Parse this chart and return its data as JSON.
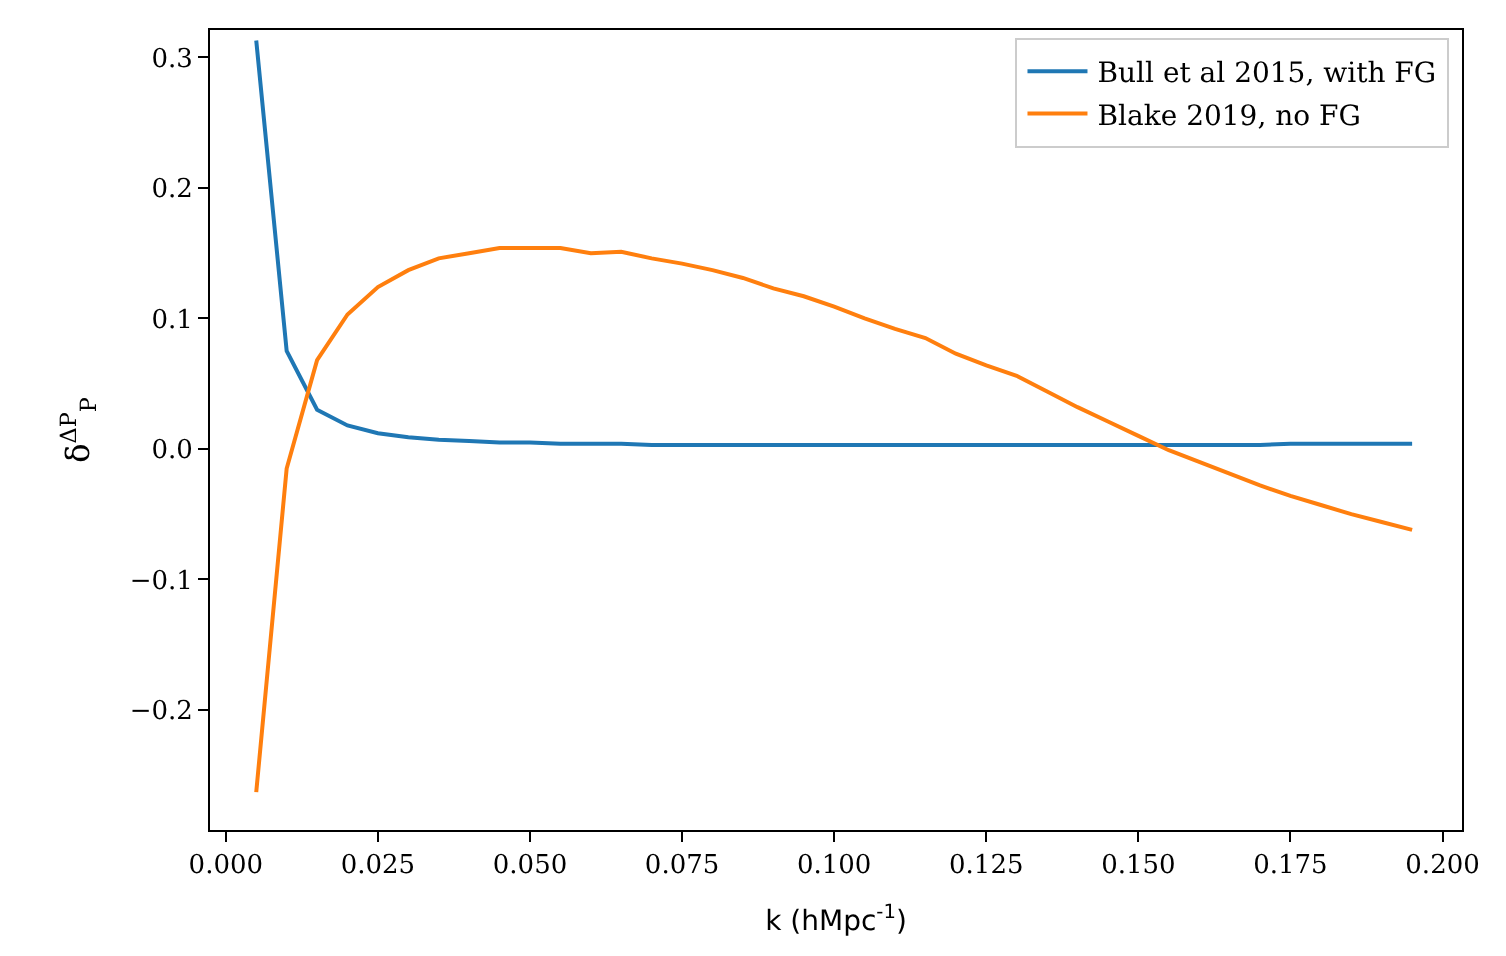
{
  "chart_data": {
    "type": "line",
    "xlabel": "k (hMpc$^{-1}$)",
    "ylabel": "δ$^{ΔP}$$_{P}$",
    "x": [
      0.005,
      0.01,
      0.015,
      0.02,
      0.025,
      0.03,
      0.035,
      0.04,
      0.045,
      0.05,
      0.055,
      0.06,
      0.065,
      0.07,
      0.075,
      0.08,
      0.085,
      0.09,
      0.095,
      0.1,
      0.105,
      0.11,
      0.115,
      0.12,
      0.125,
      0.13,
      0.135,
      0.14,
      0.145,
      0.15,
      0.155,
      0.16,
      0.165,
      0.17,
      0.175,
      0.18,
      0.185,
      0.19,
      0.195
    ],
    "series": [
      {
        "name": "Bull et al 2015, with FG",
        "color": "#1f77b4",
        "values": [
          0.313,
          0.075,
          0.03,
          0.018,
          0.012,
          0.009,
          0.007,
          0.006,
          0.005,
          0.005,
          0.004,
          0.004,
          0.004,
          0.003,
          0.003,
          0.003,
          0.003,
          0.003,
          0.003,
          0.003,
          0.003,
          0.003,
          0.003,
          0.003,
          0.003,
          0.003,
          0.003,
          0.003,
          0.003,
          0.003,
          0.003,
          0.003,
          0.003,
          0.003,
          0.004,
          0.004,
          0.004,
          0.004,
          0.004
        ]
      },
      {
        "name": "Blake 2019, no FG",
        "color": "#ff7f0e",
        "values": [
          -0.263,
          -0.015,
          0.068,
          0.103,
          0.124,
          0.137,
          0.146,
          0.15,
          0.154,
          0.154,
          0.154,
          0.15,
          0.151,
          0.146,
          0.142,
          0.137,
          0.131,
          0.123,
          0.117,
          0.109,
          0.1,
          0.092,
          0.085,
          0.073,
          0.064,
          0.056,
          0.044,
          0.032,
          0.021,
          0.01,
          -0.001,
          -0.01,
          -0.019,
          -0.028,
          -0.036,
          -0.043,
          -0.05,
          -0.056,
          -0.062
        ]
      }
    ],
    "xlim": [
      -0.0026,
      0.2032
    ],
    "ylim": [
      -0.292,
      0.321
    ],
    "xticks": [
      {
        "value": 0,
        "label": "0.000"
      },
      {
        "value": 0.025,
        "label": "0.025"
      },
      {
        "value": 0.05,
        "label": "0.050"
      },
      {
        "value": 0.075,
        "label": "0.075"
      },
      {
        "value": 0.1,
        "label": "0.100"
      },
      {
        "value": 0.125,
        "label": "0.125"
      },
      {
        "value": 0.15,
        "label": "0.150"
      },
      {
        "value": 0.175,
        "label": "0.175"
      },
      {
        "value": 0.2,
        "label": "0.200"
      }
    ],
    "yticks": [
      {
        "value": -0.2,
        "label": "−0.2"
      },
      {
        "value": -0.1,
        "label": "−0.1"
      },
      {
        "value": 0,
        "label": "0.0"
      },
      0.1,
      0.2,
      0.3
    ],
    "legend": "top right",
    "marker": "none",
    "line_style": "solid"
  }
}
